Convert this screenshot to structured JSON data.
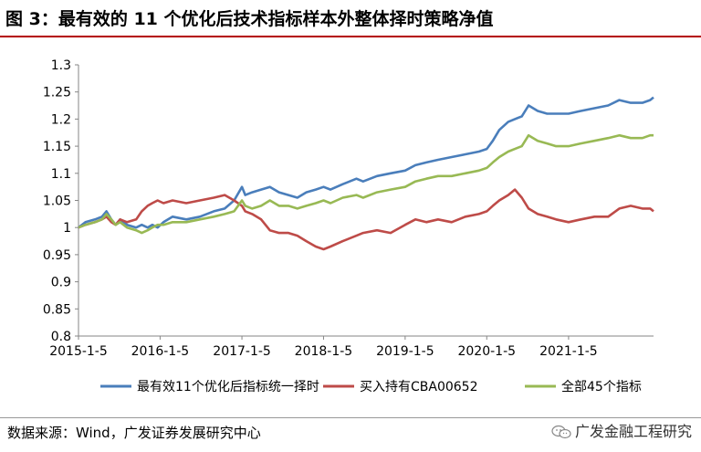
{
  "figure_title": "图 3：最有效的 11 个优化后技术指标样本外整体择时策略净值",
  "source_note": "数据来源：Wind，广发证券发展研究中心",
  "watermark": "广发金融工程研究",
  "colors": {
    "title_rule": "#b40000",
    "series_blue": "#4a7ebb",
    "series_red": "#be4b48",
    "series_green": "#98b954"
  },
  "chart_data": {
    "type": "line",
    "title": "",
    "xlabel": "",
    "ylabel": "",
    "ylim": [
      0.8,
      1.3
    ],
    "yticks": [
      "0.8",
      "0.85",
      "0.9",
      "0.95",
      "1",
      "1.05",
      "1.1",
      "1.15",
      "1.2",
      "1.25",
      "1.3"
    ],
    "xlim": [
      "2015-01-05",
      "2022-01-20"
    ],
    "xticks": [
      "2015-1-5",
      "2016-1-5",
      "2017-1-5",
      "2018-1-5",
      "2019-1-5",
      "2020-1-5",
      "2021-1-5"
    ],
    "grid": false,
    "legend_position": "bottom",
    "series": [
      {
        "name": "最有效11个优化后指标统一择时",
        "color": "#4a7ebb",
        "points": [
          [
            "2015-01-05",
            1.0
          ],
          [
            "2015-02-05",
            1.01
          ],
          [
            "2015-03-20",
            1.015
          ],
          [
            "2015-04-20",
            1.02
          ],
          [
            "2015-05-10",
            1.03
          ],
          [
            "2015-06-01",
            1.015
          ],
          [
            "2015-06-20",
            1.005
          ],
          [
            "2015-07-10",
            1.015
          ],
          [
            "2015-08-10",
            1.005
          ],
          [
            "2015-09-20",
            1.0
          ],
          [
            "2015-10-15",
            1.005
          ],
          [
            "2015-11-10",
            1.0
          ],
          [
            "2015-12-01",
            1.005
          ],
          [
            "2015-12-25",
            1.0
          ],
          [
            "2016-01-20",
            1.01
          ],
          [
            "2016-03-01",
            1.02
          ],
          [
            "2016-05-01",
            1.015
          ],
          [
            "2016-07-01",
            1.02
          ],
          [
            "2016-09-01",
            1.03
          ],
          [
            "2016-10-20",
            1.035
          ],
          [
            "2016-12-01",
            1.05
          ],
          [
            "2017-01-05",
            1.075
          ],
          [
            "2017-01-20",
            1.06
          ],
          [
            "2017-02-20",
            1.065
          ],
          [
            "2017-04-01",
            1.07
          ],
          [
            "2017-05-10",
            1.075
          ],
          [
            "2017-06-20",
            1.065
          ],
          [
            "2017-08-01",
            1.06
          ],
          [
            "2017-09-10",
            1.055
          ],
          [
            "2017-10-20",
            1.065
          ],
          [
            "2017-12-01",
            1.07
          ],
          [
            "2018-01-05",
            1.075
          ],
          [
            "2018-02-05",
            1.07
          ],
          [
            "2018-04-01",
            1.08
          ],
          [
            "2018-06-01",
            1.09
          ],
          [
            "2018-07-01",
            1.085
          ],
          [
            "2018-09-01",
            1.095
          ],
          [
            "2018-11-01",
            1.1
          ],
          [
            "2019-01-05",
            1.105
          ],
          [
            "2019-02-20",
            1.115
          ],
          [
            "2019-04-10",
            1.12
          ],
          [
            "2019-06-01",
            1.125
          ],
          [
            "2019-08-01",
            1.13
          ],
          [
            "2019-10-01",
            1.135
          ],
          [
            "2019-12-01",
            1.14
          ],
          [
            "2020-01-05",
            1.145
          ],
          [
            "2020-02-01",
            1.16
          ],
          [
            "2020-03-01",
            1.18
          ],
          [
            "2020-04-10",
            1.195
          ],
          [
            "2020-05-10",
            1.2
          ],
          [
            "2020-06-10",
            1.205
          ],
          [
            "2020-07-10",
            1.225
          ],
          [
            "2020-08-20",
            1.215
          ],
          [
            "2020-10-01",
            1.21
          ],
          [
            "2020-11-10",
            1.21
          ],
          [
            "2021-01-05",
            1.21
          ],
          [
            "2021-03-01",
            1.215
          ],
          [
            "2021-05-01",
            1.22
          ],
          [
            "2021-07-01",
            1.225
          ],
          [
            "2021-08-20",
            1.235
          ],
          [
            "2021-10-10",
            1.23
          ],
          [
            "2021-12-01",
            1.23
          ],
          [
            "2022-01-05",
            1.235
          ],
          [
            "2022-01-20",
            1.24
          ]
        ]
      },
      {
        "name": "买入持有CBA00652",
        "color": "#be4b48",
        "points": [
          [
            "2015-01-05",
            1.0
          ],
          [
            "2015-02-05",
            1.005
          ],
          [
            "2015-03-20",
            1.01
          ],
          [
            "2015-04-20",
            1.015
          ],
          [
            "2015-05-10",
            1.02
          ],
          [
            "2015-06-01",
            1.01
          ],
          [
            "2015-06-20",
            1.005
          ],
          [
            "2015-07-10",
            1.015
          ],
          [
            "2015-08-10",
            1.01
          ],
          [
            "2015-09-20",
            1.015
          ],
          [
            "2015-10-15",
            1.03
          ],
          [
            "2015-11-10",
            1.04
          ],
          [
            "2015-12-01",
            1.045
          ],
          [
            "2015-12-25",
            1.05
          ],
          [
            "2016-01-20",
            1.045
          ],
          [
            "2016-03-01",
            1.05
          ],
          [
            "2016-05-01",
            1.045
          ],
          [
            "2016-07-01",
            1.05
          ],
          [
            "2016-09-01",
            1.055
          ],
          [
            "2016-10-20",
            1.06
          ],
          [
            "2016-12-01",
            1.05
          ],
          [
            "2017-01-05",
            1.04
          ],
          [
            "2017-01-20",
            1.03
          ],
          [
            "2017-02-20",
            1.025
          ],
          [
            "2017-04-01",
            1.015
          ],
          [
            "2017-05-10",
            0.995
          ],
          [
            "2017-06-20",
            0.99
          ],
          [
            "2017-08-01",
            0.99
          ],
          [
            "2017-09-10",
            0.985
          ],
          [
            "2017-10-20",
            0.975
          ],
          [
            "2017-12-01",
            0.965
          ],
          [
            "2018-01-05",
            0.96
          ],
          [
            "2018-02-05",
            0.965
          ],
          [
            "2018-04-01",
            0.975
          ],
          [
            "2018-06-01",
            0.985
          ],
          [
            "2018-07-01",
            0.99
          ],
          [
            "2018-09-01",
            0.995
          ],
          [
            "2018-11-01",
            0.99
          ],
          [
            "2019-01-05",
            1.005
          ],
          [
            "2019-02-20",
            1.015
          ],
          [
            "2019-04-10",
            1.01
          ],
          [
            "2019-06-01",
            1.015
          ],
          [
            "2019-08-01",
            1.01
          ],
          [
            "2019-10-01",
            1.02
          ],
          [
            "2019-12-01",
            1.025
          ],
          [
            "2020-01-05",
            1.03
          ],
          [
            "2020-02-01",
            1.04
          ],
          [
            "2020-03-01",
            1.05
          ],
          [
            "2020-04-10",
            1.06
          ],
          [
            "2020-05-10",
            1.07
          ],
          [
            "2020-06-10",
            1.055
          ],
          [
            "2020-07-10",
            1.035
          ],
          [
            "2020-08-20",
            1.025
          ],
          [
            "2020-10-01",
            1.02
          ],
          [
            "2020-11-10",
            1.015
          ],
          [
            "2021-01-05",
            1.01
          ],
          [
            "2021-03-01",
            1.015
          ],
          [
            "2021-05-01",
            1.02
          ],
          [
            "2021-07-01",
            1.02
          ],
          [
            "2021-08-20",
            1.035
          ],
          [
            "2021-10-10",
            1.04
          ],
          [
            "2021-12-01",
            1.035
          ],
          [
            "2022-01-05",
            1.035
          ],
          [
            "2022-01-20",
            1.03
          ]
        ]
      },
      {
        "name": "全部45个指标",
        "color": "#98b954",
        "points": [
          [
            "2015-01-05",
            1.0
          ],
          [
            "2015-02-05",
            1.005
          ],
          [
            "2015-03-20",
            1.01
          ],
          [
            "2015-04-20",
            1.015
          ],
          [
            "2015-05-10",
            1.025
          ],
          [
            "2015-06-01",
            1.015
          ],
          [
            "2015-06-20",
            1.005
          ],
          [
            "2015-07-10",
            1.01
          ],
          [
            "2015-08-10",
            1.0
          ],
          [
            "2015-09-20",
            0.995
          ],
          [
            "2015-10-15",
            0.99
          ],
          [
            "2015-11-10",
            0.995
          ],
          [
            "2015-12-01",
            1.0
          ],
          [
            "2015-12-25",
            1.005
          ],
          [
            "2016-01-20",
            1.005
          ],
          [
            "2016-03-01",
            1.01
          ],
          [
            "2016-05-01",
            1.01
          ],
          [
            "2016-07-01",
            1.015
          ],
          [
            "2016-09-01",
            1.02
          ],
          [
            "2016-10-20",
            1.025
          ],
          [
            "2016-12-01",
            1.03
          ],
          [
            "2017-01-05",
            1.05
          ],
          [
            "2017-01-20",
            1.04
          ],
          [
            "2017-02-20",
            1.035
          ],
          [
            "2017-04-01",
            1.04
          ],
          [
            "2017-05-10",
            1.05
          ],
          [
            "2017-06-20",
            1.04
          ],
          [
            "2017-08-01",
            1.04
          ],
          [
            "2017-09-10",
            1.035
          ],
          [
            "2017-10-20",
            1.04
          ],
          [
            "2017-12-01",
            1.045
          ],
          [
            "2018-01-05",
            1.05
          ],
          [
            "2018-02-05",
            1.045
          ],
          [
            "2018-04-01",
            1.055
          ],
          [
            "2018-06-01",
            1.06
          ],
          [
            "2018-07-01",
            1.055
          ],
          [
            "2018-09-01",
            1.065
          ],
          [
            "2018-11-01",
            1.07
          ],
          [
            "2019-01-05",
            1.075
          ],
          [
            "2019-02-20",
            1.085
          ],
          [
            "2019-04-10",
            1.09
          ],
          [
            "2019-06-01",
            1.095
          ],
          [
            "2019-08-01",
            1.095
          ],
          [
            "2019-10-01",
            1.1
          ],
          [
            "2019-12-01",
            1.105
          ],
          [
            "2020-01-05",
            1.11
          ],
          [
            "2020-02-01",
            1.12
          ],
          [
            "2020-03-01",
            1.13
          ],
          [
            "2020-04-10",
            1.14
          ],
          [
            "2020-05-10",
            1.145
          ],
          [
            "2020-06-10",
            1.15
          ],
          [
            "2020-07-10",
            1.17
          ],
          [
            "2020-08-20",
            1.16
          ],
          [
            "2020-10-01",
            1.155
          ],
          [
            "2020-11-10",
            1.15
          ],
          [
            "2021-01-05",
            1.15
          ],
          [
            "2021-03-01",
            1.155
          ],
          [
            "2021-05-01",
            1.16
          ],
          [
            "2021-07-01",
            1.165
          ],
          [
            "2021-08-20",
            1.17
          ],
          [
            "2021-10-10",
            1.165
          ],
          [
            "2021-12-01",
            1.165
          ],
          [
            "2022-01-05",
            1.17
          ],
          [
            "2022-01-20",
            1.17
          ]
        ]
      }
    ]
  }
}
